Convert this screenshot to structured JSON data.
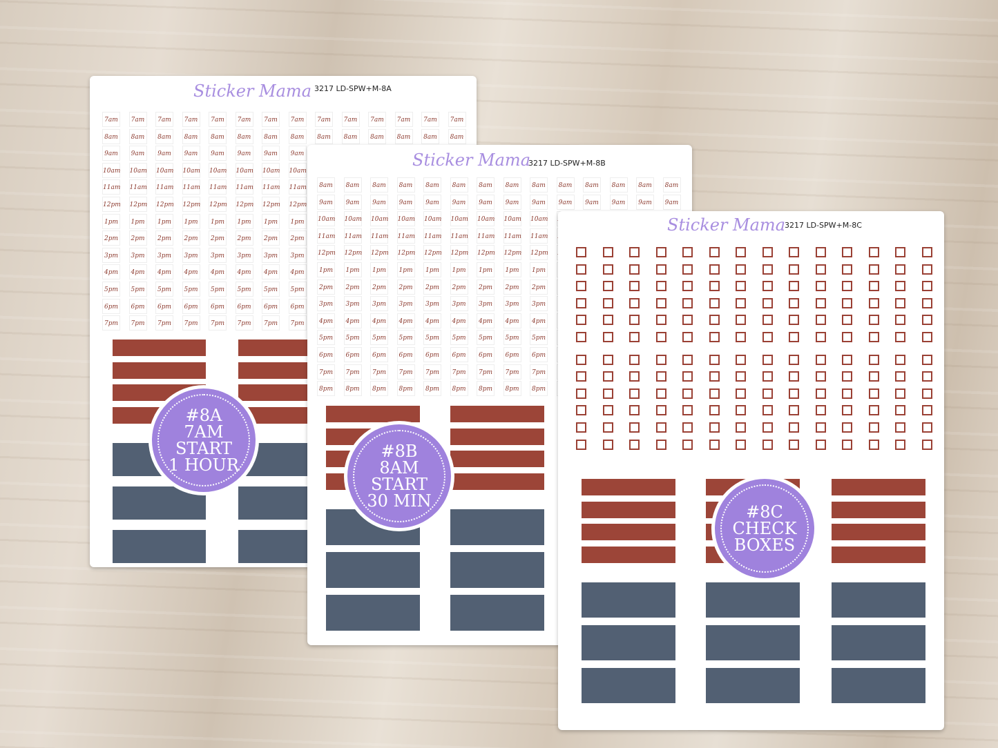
{
  "sheets": [
    {
      "brand": "Sticker Mama",
      "code": "3217 LD-SPW+M-8A",
      "times": [
        "7am",
        "8am",
        "9am",
        "10am",
        "11am",
        "12pm",
        "1pm",
        "2pm",
        "3pm",
        "4pm",
        "5pm",
        "6pm",
        "7pm"
      ],
      "badge": [
        "#8A",
        "7AM",
        "START",
        "1 HOUR"
      ]
    },
    {
      "brand": "Sticker Mama",
      "code": "3217 LD-SPW+M-8B",
      "times": [
        "8am",
        "9am",
        "10am",
        "11am",
        "12pm",
        "1pm",
        "2pm",
        "3pm",
        "4pm",
        "5pm",
        "6pm",
        "7pm",
        "8pm"
      ],
      "badge": [
        "#8B",
        "8AM",
        "START",
        "30 MIN"
      ]
    },
    {
      "brand": "Sticker Mama",
      "code": "3217 LD-SPW+M-8C",
      "badge": [
        "#8C",
        "CHECK",
        "BOXES"
      ]
    }
  ]
}
